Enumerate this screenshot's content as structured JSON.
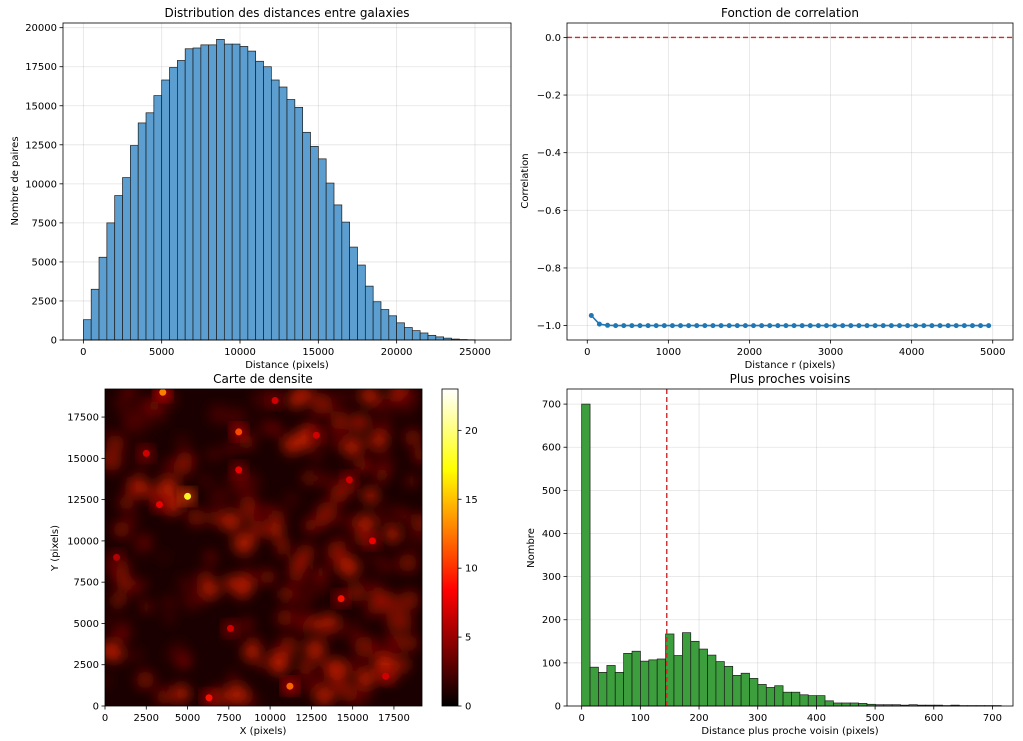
{
  "colors": {
    "hist_blue": "#5b9ecf",
    "line_blue": "#1f77b4",
    "hist_green": "#3c9e3c",
    "ref_red": "#d62728"
  },
  "chart_data": [
    {
      "id": "distances",
      "type": "bar",
      "title": "Distribution des distances entre galaxies",
      "xlabel": "Distance (pixels)",
      "ylabel": "Nombre de paires",
      "xlim": [
        -1300,
        27300
      ],
      "ylim": [
        0,
        20300
      ],
      "bin_start": 0,
      "bin_width": 500,
      "values": [
        1300,
        3250,
        5300,
        7500,
        9250,
        10400,
        12450,
        13900,
        14550,
        15650,
        16650,
        17450,
        17900,
        18650,
        18700,
        18900,
        18900,
        19250,
        18950,
        18950,
        18800,
        18500,
        17850,
        17500,
        16650,
        16200,
        15400,
        14900,
        13300,
        12400,
        11600,
        10050,
        8650,
        7550,
        5950,
        4800,
        3450,
        2450,
        1950,
        1550,
        1100,
        800,
        600,
        450,
        300,
        200,
        120,
        60,
        30,
        15
      ],
      "xticks": [
        0,
        5000,
        10000,
        15000,
        20000,
        25000
      ],
      "yticks": [
        0,
        2500,
        5000,
        7500,
        10000,
        12500,
        15000,
        17500,
        20000
      ]
    },
    {
      "id": "correlation",
      "type": "line",
      "title": "Fonction de correlation",
      "xlabel": "Distance r (pixels)",
      "ylabel": "Correlation",
      "xlim": [
        -250,
        5250
      ],
      "ylim": [
        -1.05,
        0.05
      ],
      "x_start": 50,
      "x_step": 100,
      "values": [
        -0.965,
        -0.995,
        -0.999,
        -1.0,
        -1.0,
        -1.0,
        -1.0,
        -1.0,
        -1.0,
        -1.0,
        -1.0,
        -1.0,
        -1.0,
        -1.0,
        -1.0,
        -1.0,
        -1.0,
        -1.0,
        -1.0,
        -1.0,
        -1.0,
        -1.0,
        -1.0,
        -1.0,
        -1.0,
        -1.0,
        -1.0,
        -1.0,
        -1.0,
        -1.0,
        -1.0,
        -1.0,
        -1.0,
        -1.0,
        -1.0,
        -1.0,
        -1.0,
        -1.0,
        -1.0,
        -1.0,
        -1.0,
        -1.0,
        -1.0,
        -1.0,
        -1.0,
        -1.0,
        -1.0,
        -1.0,
        -1.0,
        -1.0
      ],
      "reference_line": 0.0,
      "xticks": [
        0,
        1000,
        2000,
        3000,
        4000,
        5000
      ],
      "yticks": [
        0.0,
        -0.2,
        -0.4,
        -0.6,
        -0.8,
        -1.0
      ]
    },
    {
      "id": "density",
      "type": "heatmap",
      "title": "Carte de densite",
      "xlabel": "X (pixels)",
      "ylabel": "Y (pixels)",
      "xlim": [
        0,
        19200
      ],
      "ylim": [
        0,
        19200
      ],
      "colormap": "hot",
      "color_range": [
        0,
        23
      ],
      "colorbar_ticks": [
        0,
        5,
        10,
        15,
        20
      ],
      "hotspots": [
        {
          "x": 5000,
          "y": 12700,
          "v": 18
        },
        {
          "x": 3500,
          "y": 19000,
          "v": 13
        },
        {
          "x": 11200,
          "y": 1200,
          "v": 12
        },
        {
          "x": 8100,
          "y": 16600,
          "v": 11
        },
        {
          "x": 6300,
          "y": 500,
          "v": 9
        },
        {
          "x": 14300,
          "y": 6500,
          "v": 9
        },
        {
          "x": 8100,
          "y": 14300,
          "v": 8
        },
        {
          "x": 3300,
          "y": 12200,
          "v": 8
        },
        {
          "x": 16200,
          "y": 10000,
          "v": 8
        },
        {
          "x": 12800,
          "y": 16400,
          "v": 7
        },
        {
          "x": 2500,
          "y": 15300,
          "v": 7
        },
        {
          "x": 7600,
          "y": 4700,
          "v": 7
        },
        {
          "x": 17000,
          "y": 1800,
          "v": 7
        },
        {
          "x": 10300,
          "y": 18500,
          "v": 7
        },
        {
          "x": 700,
          "y": 9000,
          "v": 6
        },
        {
          "x": 14800,
          "y": 13700,
          "v": 7
        }
      ],
      "xticks": [
        0,
        2500,
        5000,
        7500,
        10000,
        12500,
        15000,
        17500
      ],
      "yticks": [
        0,
        2500,
        5000,
        7500,
        10000,
        12500,
        15000,
        17500
      ]
    },
    {
      "id": "neighbors",
      "type": "bar",
      "title": "Plus proches voisins",
      "xlabel": "Distance plus proche voisin (pixels)",
      "ylabel": "Nombre",
      "xlim": [
        -25,
        735
      ],
      "ylim": [
        0,
        735
      ],
      "bin_start": 0,
      "bin_width": 14.3,
      "values": [
        700,
        90,
        78,
        94,
        78,
        122,
        127,
        104,
        107,
        109,
        167,
        117,
        170,
        150,
        132,
        118,
        103,
        92,
        71,
        76,
        64,
        50,
        43,
        47,
        32,
        32,
        26,
        24,
        24,
        12,
        7,
        7,
        7,
        6,
        4,
        3,
        3,
        3,
        2,
        3,
        2,
        2,
        2,
        1,
        2,
        1,
        1,
        1,
        1,
        1
      ],
      "reference_line": 145,
      "xticks": [
        0,
        100,
        200,
        300,
        400,
        500,
        600,
        700
      ],
      "yticks": [
        0,
        100,
        200,
        300,
        400,
        500,
        600,
        700
      ]
    }
  ]
}
